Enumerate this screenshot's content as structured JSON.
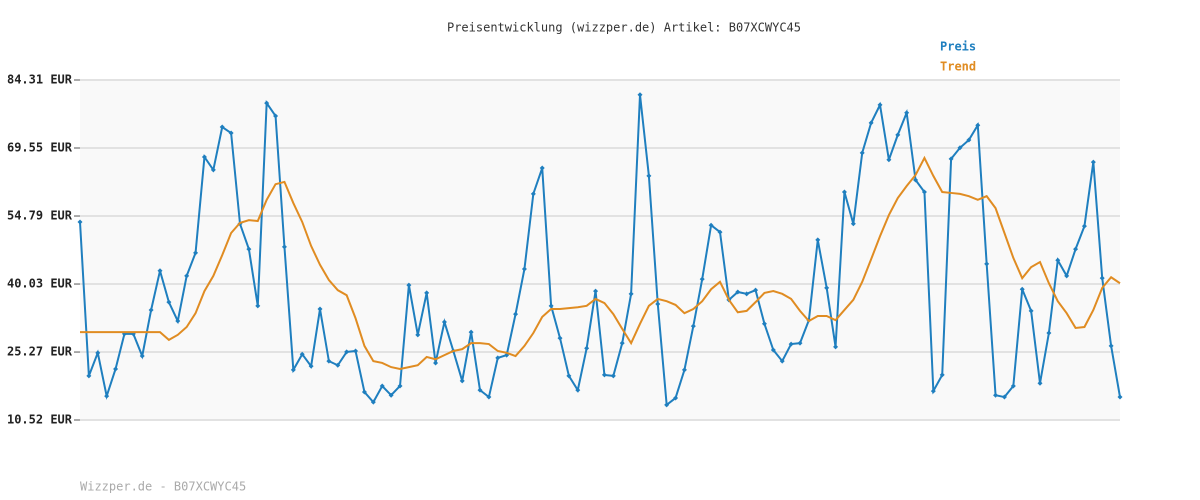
{
  "chart_data": {
    "type": "line",
    "title": "Preisentwicklung (wizzper.de) Artikel: B07XCWYC45",
    "ylim": [
      10.52,
      84.31
    ],
    "yticks": [
      {
        "value": 10.52,
        "label": "10.52 EUR"
      },
      {
        "value": 25.27,
        "label": "25.27 EUR"
      },
      {
        "value": 40.03,
        "label": "40.03 EUR"
      },
      {
        "value": 54.79,
        "label": "54.79 EUR"
      },
      {
        "value": 69.55,
        "label": "69.55 EUR"
      },
      {
        "value": 84.31,
        "label": "84.31 EUR"
      }
    ],
    "grid": true,
    "legend": "top-right",
    "series": [
      {
        "name": "Preis",
        "color": "#1f7fbf",
        "markers": true,
        "values": [
          53.5,
          20.1,
          25.1,
          15.7,
          21.6,
          29.2,
          29.2,
          24.4,
          34.4,
          42.9,
          36.1,
          32.0,
          41.8,
          46.8,
          67.6,
          64.8,
          74.1,
          72.8,
          53.1,
          47.6,
          35.3,
          79.3,
          76.5,
          48.1,
          21.4,
          24.8,
          22.2,
          34.6,
          23.3,
          22.4,
          25.3,
          25.5,
          16.6,
          14.4,
          17.9,
          15.9,
          17.9,
          39.8,
          29.0,
          38.1,
          22.9,
          31.8,
          25.5,
          19.0,
          29.6,
          17.0,
          15.5,
          24.0,
          24.6,
          33.5,
          43.3,
          59.6,
          65.2,
          35.3,
          28.3,
          20.1,
          17.0,
          26.1,
          38.5,
          20.3,
          20.1,
          27.2,
          37.9,
          81.1,
          63.5,
          35.7,
          13.8,
          15.3,
          21.4,
          30.9,
          41.1,
          52.8,
          51.3,
          36.6,
          38.3,
          37.9,
          38.7,
          31.4,
          25.7,
          23.3,
          27.0,
          27.2,
          32.2,
          49.6,
          39.2,
          26.4,
          60.0,
          53.1,
          68.5,
          75.0,
          78.9,
          67.0,
          72.4,
          77.2,
          62.6,
          60.0,
          16.8,
          20.3,
          67.2,
          69.6,
          71.3,
          74.5,
          44.4,
          15.9,
          15.5,
          17.9,
          38.9,
          34.2,
          18.5,
          29.4,
          45.2,
          41.8,
          47.6,
          52.6,
          66.5,
          41.3,
          26.6,
          15.5
        ]
      },
      {
        "name": "Trend",
        "color": "#e08c22",
        "markers": false,
        "values": [
          29.6,
          29.6,
          29.6,
          29.6,
          29.6,
          29.6,
          29.6,
          29.6,
          29.6,
          29.6,
          27.9,
          29.0,
          30.7,
          33.7,
          38.5,
          41.8,
          46.3,
          51.1,
          53.3,
          53.9,
          53.7,
          58.3,
          61.7,
          62.2,
          57.6,
          53.5,
          48.3,
          44.2,
          40.9,
          38.7,
          37.6,
          32.6,
          26.6,
          23.3,
          22.9,
          22.0,
          21.6,
          22.0,
          22.4,
          24.2,
          23.7,
          24.6,
          25.5,
          25.9,
          27.2,
          27.2,
          27.0,
          25.5,
          25.1,
          24.4,
          26.6,
          29.4,
          32.9,
          34.6,
          34.6,
          34.8,
          35.0,
          35.3,
          36.8,
          35.9,
          33.5,
          30.3,
          27.2,
          31.4,
          35.3,
          36.8,
          36.3,
          35.5,
          33.7,
          34.6,
          36.3,
          38.9,
          40.5,
          36.6,
          33.9,
          34.2,
          36.1,
          38.1,
          38.5,
          37.9,
          36.8,
          34.2,
          32.0,
          33.1,
          33.1,
          32.2,
          34.4,
          36.6,
          40.5,
          45.4,
          50.4,
          55.0,
          58.7,
          61.3,
          63.7,
          67.4,
          63.5,
          60.0,
          59.8,
          59.6,
          59.1,
          58.3,
          59.1,
          56.5,
          51.1,
          45.7,
          41.3,
          43.7,
          44.8,
          40.2,
          36.3,
          33.7,
          30.5,
          30.7,
          34.4,
          39.2,
          41.5,
          40.2
        ]
      }
    ]
  },
  "footer": "Wizzper.de - B07XCWYC45"
}
